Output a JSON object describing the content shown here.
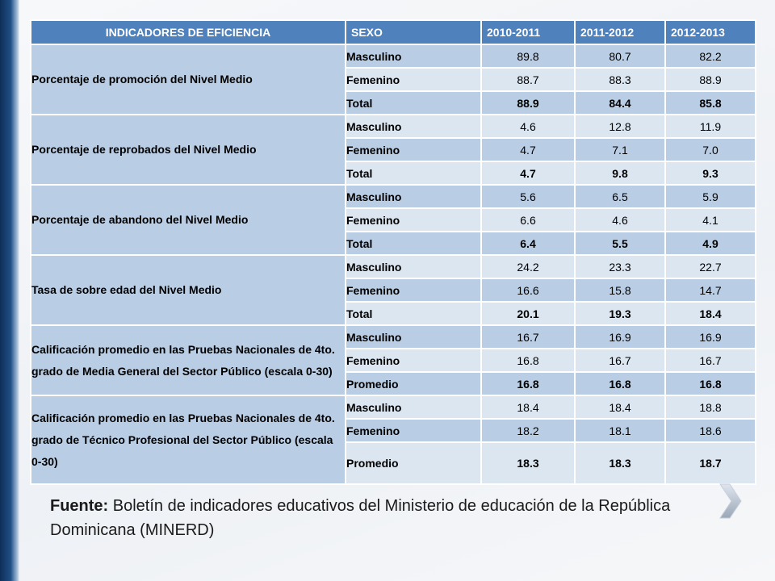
{
  "table": {
    "headers": [
      "INDICADORES DE EFICIENCIA",
      "SEXO",
      "2010-2011",
      "2011-2012",
      "2012-2013"
    ],
    "groups": [
      {
        "label": "Porcentaje de promoción del Nivel Medio",
        "rows": [
          {
            "sex": "Masculino",
            "values": [
              "89.8",
              "80.7",
              "82.2"
            ]
          },
          {
            "sex": "Femenino",
            "values": [
              "88.7",
              "88.3",
              "88.9"
            ]
          },
          {
            "sex": "Total",
            "values": [
              "88.9",
              "84.4",
              "85.8"
            ]
          }
        ]
      },
      {
        "label": "Porcentaje de reprobados del Nivel Medio",
        "rows": [
          {
            "sex": "Masculino",
            "values": [
              "4.6",
              "12.8",
              "11.9"
            ]
          },
          {
            "sex": "Femenino",
            "values": [
              "4.7",
              "7.1",
              "7.0"
            ]
          },
          {
            "sex": "Total",
            "values": [
              "4.7",
              "9.8",
              "9.3"
            ]
          }
        ]
      },
      {
        "label": "Porcentaje de abandono del Nivel Medio",
        "rows": [
          {
            "sex": "Masculino",
            "values": [
              "5.6",
              "6.5",
              "5.9"
            ]
          },
          {
            "sex": "Femenino",
            "values": [
              "6.6",
              "4.6",
              "4.1"
            ]
          },
          {
            "sex": "Total",
            "values": [
              "6.4",
              "5.5",
              "4.9"
            ]
          }
        ]
      },
      {
        "label": "Tasa de sobre edad del Nivel Medio",
        "rows": [
          {
            "sex": "Masculino",
            "values": [
              "24.2",
              "23.3",
              "22.7"
            ]
          },
          {
            "sex": "Femenino",
            "values": [
              "16.6",
              "15.8",
              "14.7"
            ]
          },
          {
            "sex": "Total",
            "values": [
              "20.1",
              "19.3",
              "18.4"
            ]
          }
        ]
      },
      {
        "label": "Calificación promedio en las Pruebas Nacionales de 4to. grado de Media General del Sector Público (escala 0-30)",
        "rows": [
          {
            "sex": "Masculino",
            "values": [
              "16.7",
              "16.9",
              "16.9"
            ]
          },
          {
            "sex": "Femenino",
            "values": [
              "16.8",
              "16.7",
              "16.7"
            ]
          },
          {
            "sex": "Promedio",
            "values": [
              "16.8",
              "16.8",
              "16.8"
            ]
          }
        ]
      },
      {
        "label": "Calificación promedio en las Pruebas Nacionales de 4to. grado de Técnico Profesional del Sector Público  (escala 0-30)",
        "rows": [
          {
            "sex": "Masculino",
            "values": [
              "18.4",
              "18.4",
              "18.8"
            ]
          },
          {
            "sex": "Femenino",
            "values": [
              "18.2",
              "18.1",
              "18.6"
            ]
          },
          {
            "sex": "Promedio",
            "values": [
              "18.3",
              "18.3",
              "18.7"
            ]
          }
        ]
      }
    ]
  },
  "source": {
    "label": "Fuente:",
    "text": " Boletín de indicadores educativos del Ministerio de educación de la República Dominicana (MINERD)"
  },
  "icons": {
    "next": "chevron-right-icon"
  },
  "colors": {
    "header": "#4f81bd",
    "row_dark": "#b9cde5",
    "row_light": "#dce6f1"
  }
}
